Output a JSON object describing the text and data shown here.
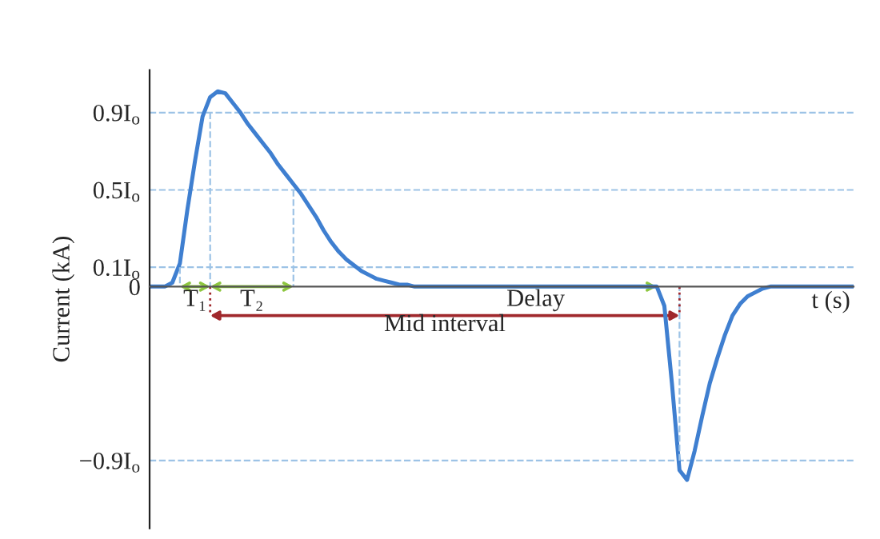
{
  "chart_data": {
    "type": "line",
    "ylabel": "Current (kA)",
    "categories": [
      null,
      null,
      null,
      null,
      null,
      null,
      null,
      null,
      null,
      null,
      null,
      null,
      null,
      null,
      null,
      null,
      null,
      null,
      null,
      null,
      null,
      null,
      null,
      null,
      null,
      null,
      null,
      null,
      null,
      null,
      null,
      null,
      null,
      null,
      null,
      null,
      null,
      null,
      null,
      null,
      null,
      null,
      null,
      null,
      null,
      null,
      null,
      null,
      null,
      null,
      null,
      null,
      null,
      null,
      null,
      null,
      null,
      null,
      null,
      null,
      null,
      null,
      null,
      null,
      null,
      null,
      null,
      null,
      null,
      null,
      null,
      null,
      null,
      null,
      null,
      null,
      null,
      null,
      null,
      null,
      null,
      null,
      null,
      null,
      null,
      null,
      null,
      null,
      null,
      null,
      null,
      null,
      null,
      null
    ],
    "series": [
      {
        "color": "#3f7fd0",
        "values": [
          0,
          0,
          0,
          0.02,
          0.12,
          0.4,
          0.65,
          0.88,
          0.98,
          1.01,
          1.0,
          0.95,
          0.9,
          0.84,
          0.79,
          0.74,
          0.69,
          0.63,
          0.58,
          0.53,
          0.48,
          0.42,
          0.36,
          0.29,
          0.23,
          0.18,
          0.14,
          0.11,
          0.08,
          0.06,
          0.04,
          0.03,
          0.02,
          0.01,
          0.01,
          0,
          0,
          0,
          0,
          0,
          0,
          0,
          0,
          0,
          0,
          0,
          0,
          0,
          0,
          0,
          0,
          0,
          0,
          0,
          0,
          0,
          0,
          0,
          0,
          0,
          0,
          0,
          0,
          0,
          0,
          0,
          0,
          0,
          -0.1,
          -0.5,
          -0.95,
          -1.0,
          -0.85,
          -0.67,
          -0.5,
          -0.37,
          -0.25,
          -0.15,
          -0.09,
          -0.05,
          -0.03,
          -0.01,
          0,
          0,
          0,
          0,
          0,
          0,
          0,
          0,
          0,
          0,
          0,
          0
        ]
      }
    ],
    "ylim": [
      -1.25,
      1.12
    ],
    "yticks": [
      {
        "value": -0.9,
        "label": "−0.9I$_{o}$"
      },
      0,
      {
        "value": 0.1,
        "label": "0.1I$_{o}$"
      },
      {
        "value": 0.5,
        "label": "0.5I$_{o}$"
      },
      {
        "value": 0.9,
        "label": "0.9I$_{o}$"
      }
    ],
    "ref_lines": [
      {
        "axis": "y",
        "value": 0.9,
        "color": "#9dc3e6",
        "line_style": "dashed"
      },
      {
        "axis": "y",
        "value": 0.5,
        "color": "#9dc3e6",
        "line_style": "dashed"
      },
      {
        "axis": "y",
        "value": 0.1,
        "color": "#9dc3e6",
        "line_style": "dashed"
      },
      {
        "axis": "y",
        "value": -0.9,
        "color": "#9dc3e6",
        "line_style": "dashed"
      }
    ],
    "annotations": [
      "T₁",
      "T₂",
      "Delay",
      "Mid interval",
      "t (s)"
    ],
    "grid": false,
    "legend": false,
    "marker": "none",
    "line_style": "solid"
  }
}
